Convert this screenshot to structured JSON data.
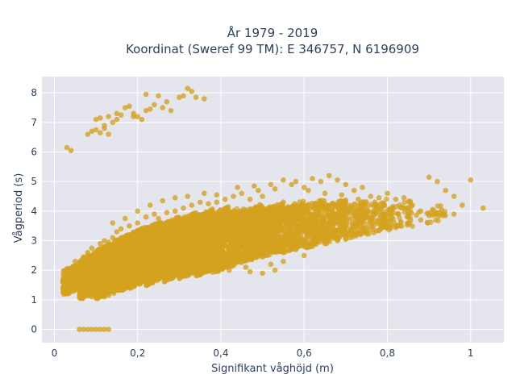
{
  "chart_data": {
    "type": "scatter",
    "title_line1": "År 1979 - 2019",
    "title_line2": "Koordinat (Sweref 99 TM): E 346757, N 6196909",
    "xlabel": "Signifikant våghöjd (m)",
    "ylabel": "Vågperiod (s)",
    "xlim": [
      -0.03,
      1.08
    ],
    "ylim": [
      -0.45,
      8.55
    ],
    "xticks": [
      {
        "v": 0,
        "label": "0"
      },
      {
        "v": 0.2,
        "label": "0,2"
      },
      {
        "v": 0.4,
        "label": "0,4"
      },
      {
        "v": 0.6,
        "label": "0,6"
      },
      {
        "v": 0.8,
        "label": "0,8"
      },
      {
        "v": 1,
        "label": "1"
      }
    ],
    "yticks": [
      {
        "v": 0,
        "label": "0"
      },
      {
        "v": 1,
        "label": "1"
      },
      {
        "v": 2,
        "label": "2"
      },
      {
        "v": 3,
        "label": "3"
      },
      {
        "v": 4,
        "label": "4"
      },
      {
        "v": 5,
        "label": "5"
      },
      {
        "v": 6,
        "label": "6"
      },
      {
        "v": 7,
        "label": "7"
      },
      {
        "v": 8,
        "label": "8"
      }
    ],
    "grid": true,
    "legend": "none",
    "marker_color": "#D4A21E",
    "plot_bg": "#E5E5EE",
    "points": [
      [
        0.03,
        6.15
      ],
      [
        0.04,
        6.05
      ],
      [
        0.08,
        6.6
      ],
      [
        0.09,
        6.7
      ],
      [
        0.1,
        6.75
      ],
      [
        0.11,
        6.65
      ],
      [
        0.12,
        6.8
      ],
      [
        0.13,
        6.6
      ],
      [
        0.1,
        7.1
      ],
      [
        0.11,
        7.15
      ],
      [
        0.12,
        6.9
      ],
      [
        0.13,
        7.2
      ],
      [
        0.14,
        7.0
      ],
      [
        0.15,
        7.1
      ],
      [
        0.16,
        7.25
      ],
      [
        0.17,
        7.5
      ],
      [
        0.18,
        7.55
      ],
      [
        0.19,
        7.3
      ],
      [
        0.2,
        7.2
      ],
      [
        0.21,
        7.1
      ],
      [
        0.22,
        7.4
      ],
      [
        0.23,
        7.45
      ],
      [
        0.24,
        7.6
      ],
      [
        0.25,
        7.9
      ],
      [
        0.26,
        7.5
      ],
      [
        0.27,
        7.7
      ],
      [
        0.28,
        7.4
      ],
      [
        0.3,
        7.85
      ],
      [
        0.31,
        7.9
      ],
      [
        0.32,
        8.15
      ],
      [
        0.33,
        8.05
      ],
      [
        0.34,
        7.85
      ],
      [
        0.36,
        7.8
      ],
      [
        0.22,
        7.95
      ],
      [
        0.15,
        7.3
      ],
      [
        0.19,
        7.2
      ],
      [
        0.06,
        0.0
      ],
      [
        0.07,
        0.0
      ],
      [
        0.08,
        0.0
      ],
      [
        0.09,
        0.0
      ],
      [
        0.1,
        0.0
      ],
      [
        0.11,
        0.0
      ],
      [
        0.12,
        0.0
      ],
      [
        0.13,
        0.0
      ],
      [
        0.02,
        1.6
      ],
      [
        0.03,
        1.5
      ],
      [
        0.04,
        1.75
      ],
      [
        0.05,
        1.4
      ],
      [
        0.06,
        1.3
      ],
      [
        0.07,
        1.2
      ],
      [
        0.08,
        1.15
      ],
      [
        0.09,
        1.1
      ],
      [
        0.1,
        1.12
      ],
      [
        0.11,
        1.1
      ],
      [
        0.12,
        1.1
      ],
      [
        0.13,
        1.15
      ],
      [
        0.03,
        2.05
      ],
      [
        0.05,
        2.3
      ],
      [
        0.06,
        2.0
      ],
      [
        0.07,
        2.45
      ],
      [
        0.08,
        2.6
      ],
      [
        0.09,
        2.75
      ],
      [
        0.1,
        2.5
      ],
      [
        0.11,
        2.9
      ],
      [
        0.12,
        3.0
      ],
      [
        0.13,
        2.95
      ],
      [
        0.14,
        3.1
      ],
      [
        0.15,
        3.3
      ],
      [
        0.16,
        3.4
      ],
      [
        0.17,
        3.05
      ],
      [
        0.18,
        3.5
      ],
      [
        0.19,
        3.2
      ],
      [
        0.2,
        3.6
      ],
      [
        0.21,
        3.4
      ],
      [
        0.22,
        3.8
      ],
      [
        0.24,
        3.9
      ],
      [
        0.25,
        3.75
      ],
      [
        0.27,
        3.95
      ],
      [
        0.29,
        4.0
      ],
      [
        0.31,
        4.1
      ],
      [
        0.33,
        4.2
      ],
      [
        0.35,
        4.3
      ],
      [
        0.37,
        4.25
      ],
      [
        0.39,
        4.3
      ],
      [
        0.41,
        4.4
      ],
      [
        0.43,
        4.5
      ],
      [
        0.45,
        4.6
      ],
      [
        0.47,
        4.4
      ],
      [
        0.49,
        4.7
      ],
      [
        0.5,
        4.5
      ],
      [
        0.52,
        4.9
      ],
      [
        0.55,
        5.05
      ],
      [
        0.58,
        5.0
      ],
      [
        0.6,
        4.8
      ],
      [
        0.62,
        5.1
      ],
      [
        0.64,
        5.0
      ],
      [
        0.66,
        5.2
      ],
      [
        0.68,
        5.05
      ],
      [
        0.7,
        4.9
      ],
      [
        0.72,
        4.7
      ],
      [
        0.74,
        4.8
      ],
      [
        0.76,
        4.5
      ],
      [
        0.78,
        4.45
      ],
      [
        0.8,
        4.6
      ],
      [
        0.82,
        4.4
      ],
      [
        0.84,
        4.45
      ],
      [
        0.86,
        4.2
      ],
      [
        0.88,
        4.0
      ],
      [
        0.9,
        5.15
      ],
      [
        0.92,
        5.0
      ],
      [
        0.94,
        4.7
      ],
      [
        0.96,
        4.5
      ],
      [
        0.98,
        4.2
      ],
      [
        1.0,
        5.05
      ],
      [
        1.03,
        4.1
      ],
      [
        0.96,
        3.9
      ],
      [
        0.93,
        4.05
      ],
      [
        0.9,
        3.85
      ],
      [
        0.3,
        2.0
      ],
      [
        0.32,
        2.1
      ],
      [
        0.35,
        2.2
      ],
      [
        0.38,
        2.3
      ],
      [
        0.4,
        2.2
      ],
      [
        0.42,
        2.0
      ],
      [
        0.45,
        2.4
      ],
      [
        0.48,
        2.6
      ],
      [
        0.5,
        2.45
      ],
      [
        0.52,
        2.2
      ],
      [
        0.55,
        2.6
      ],
      [
        0.58,
        2.7
      ],
      [
        0.6,
        2.5
      ],
      [
        0.62,
        2.8
      ],
      [
        0.65,
        2.9
      ],
      [
        0.68,
        3.0
      ],
      [
        0.7,
        3.05
      ],
      [
        0.72,
        3.2
      ],
      [
        0.75,
        3.3
      ],
      [
        0.78,
        3.35
      ],
      [
        0.8,
        3.45
      ],
      [
        0.83,
        3.5
      ],
      [
        0.85,
        3.6
      ],
      [
        0.88,
        3.7
      ],
      [
        0.47,
        1.95
      ],
      [
        0.5,
        1.9
      ],
      [
        0.53,
        2.0
      ],
      [
        0.46,
        2.1
      ],
      [
        0.55,
        2.3
      ],
      [
        0.14,
        3.6
      ],
      [
        0.17,
        3.75
      ],
      [
        0.2,
        4.0
      ],
      [
        0.23,
        4.2
      ],
      [
        0.26,
        4.35
      ],
      [
        0.29,
        4.45
      ],
      [
        0.32,
        4.5
      ],
      [
        0.36,
        4.6
      ],
      [
        0.39,
        4.55
      ],
      [
        0.44,
        4.8
      ],
      [
        0.48,
        4.85
      ],
      [
        0.53,
        4.75
      ],
      [
        0.57,
        4.9
      ],
      [
        0.61,
        4.7
      ],
      [
        0.65,
        4.6
      ],
      [
        0.69,
        4.55
      ],
      [
        0.73,
        4.4
      ],
      [
        0.77,
        4.3
      ],
      [
        0.15,
        1.4
      ],
      [
        0.18,
        1.55
      ],
      [
        0.21,
        1.7
      ],
      [
        0.24,
        1.8
      ],
      [
        0.27,
        1.9
      ],
      [
        0.29,
        1.95
      ],
      [
        0.25,
        1.7
      ],
      [
        0.2,
        1.55
      ]
    ],
    "density_bands": [
      {
        "x0": 0.02,
        "x1": 0.06,
        "ylo": 1.25,
        "yhi": 2.1,
        "n": 220
      },
      {
        "x0": 0.06,
        "x1": 0.1,
        "ylo": 1.12,
        "yhi": 2.5,
        "n": 420
      },
      {
        "x0": 0.1,
        "x1": 0.14,
        "ylo": 1.15,
        "yhi": 2.8,
        "n": 520
      },
      {
        "x0": 0.14,
        "x1": 0.18,
        "ylo": 1.3,
        "yhi": 3.1,
        "n": 560
      },
      {
        "x0": 0.18,
        "x1": 0.22,
        "ylo": 1.5,
        "yhi": 3.35,
        "n": 560
      },
      {
        "x0": 0.22,
        "x1": 0.26,
        "ylo": 1.6,
        "yhi": 3.55,
        "n": 540
      },
      {
        "x0": 0.26,
        "x1": 0.3,
        "ylo": 1.7,
        "yhi": 3.7,
        "n": 520
      },
      {
        "x0": 0.3,
        "x1": 0.34,
        "ylo": 1.8,
        "yhi": 3.85,
        "n": 480
      },
      {
        "x0": 0.34,
        "x1": 0.38,
        "ylo": 1.9,
        "yhi": 3.95,
        "n": 440
      },
      {
        "x0": 0.38,
        "x1": 0.42,
        "ylo": 2.0,
        "yhi": 4.05,
        "n": 400
      },
      {
        "x0": 0.42,
        "x1": 0.46,
        "ylo": 2.2,
        "yhi": 4.1,
        "n": 360
      },
      {
        "x0": 0.46,
        "x1": 0.5,
        "ylo": 2.4,
        "yhi": 4.15,
        "n": 320
      },
      {
        "x0": 0.5,
        "x1": 0.55,
        "ylo": 2.55,
        "yhi": 4.2,
        "n": 300
      },
      {
        "x0": 0.55,
        "x1": 0.6,
        "ylo": 2.7,
        "yhi": 4.25,
        "n": 260
      },
      {
        "x0": 0.6,
        "x1": 0.65,
        "ylo": 2.85,
        "yhi": 4.3,
        "n": 220
      },
      {
        "x0": 0.65,
        "x1": 0.7,
        "ylo": 3.0,
        "yhi": 4.3,
        "n": 180
      },
      {
        "x0": 0.7,
        "x1": 0.75,
        "ylo": 3.15,
        "yhi": 4.3,
        "n": 130
      },
      {
        "x0": 0.75,
        "x1": 0.8,
        "ylo": 3.3,
        "yhi": 4.3,
        "n": 90
      },
      {
        "x0": 0.8,
        "x1": 0.86,
        "ylo": 3.45,
        "yhi": 4.25,
        "n": 60
      },
      {
        "x0": 0.86,
        "x1": 0.94,
        "ylo": 3.6,
        "yhi": 4.2,
        "n": 30
      }
    ]
  }
}
